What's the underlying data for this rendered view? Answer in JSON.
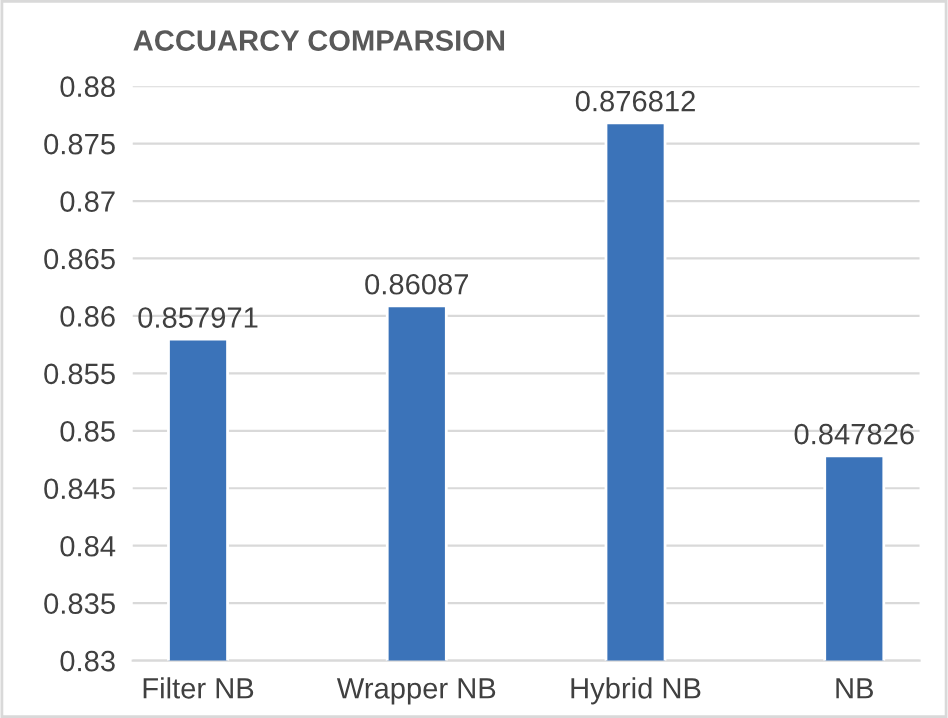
{
  "chart_data": {
    "type": "bar",
    "title": "ACCUARCY COMPARSION",
    "categories": [
      "Filter NB",
      "Wrapper NB",
      "Hybrid NB",
      "NB"
    ],
    "values": [
      0.857971,
      0.86087,
      0.876812,
      0.847826
    ],
    "color": "#3b73b9",
    "ylim": [
      0.83,
      0.88
    ],
    "yticks": [
      0.83,
      0.835,
      0.84,
      0.845,
      0.85,
      0.855,
      0.86,
      0.865,
      0.87,
      0.875,
      0.88
    ],
    "grid": "y",
    "data_labels": true,
    "legend": false
  }
}
